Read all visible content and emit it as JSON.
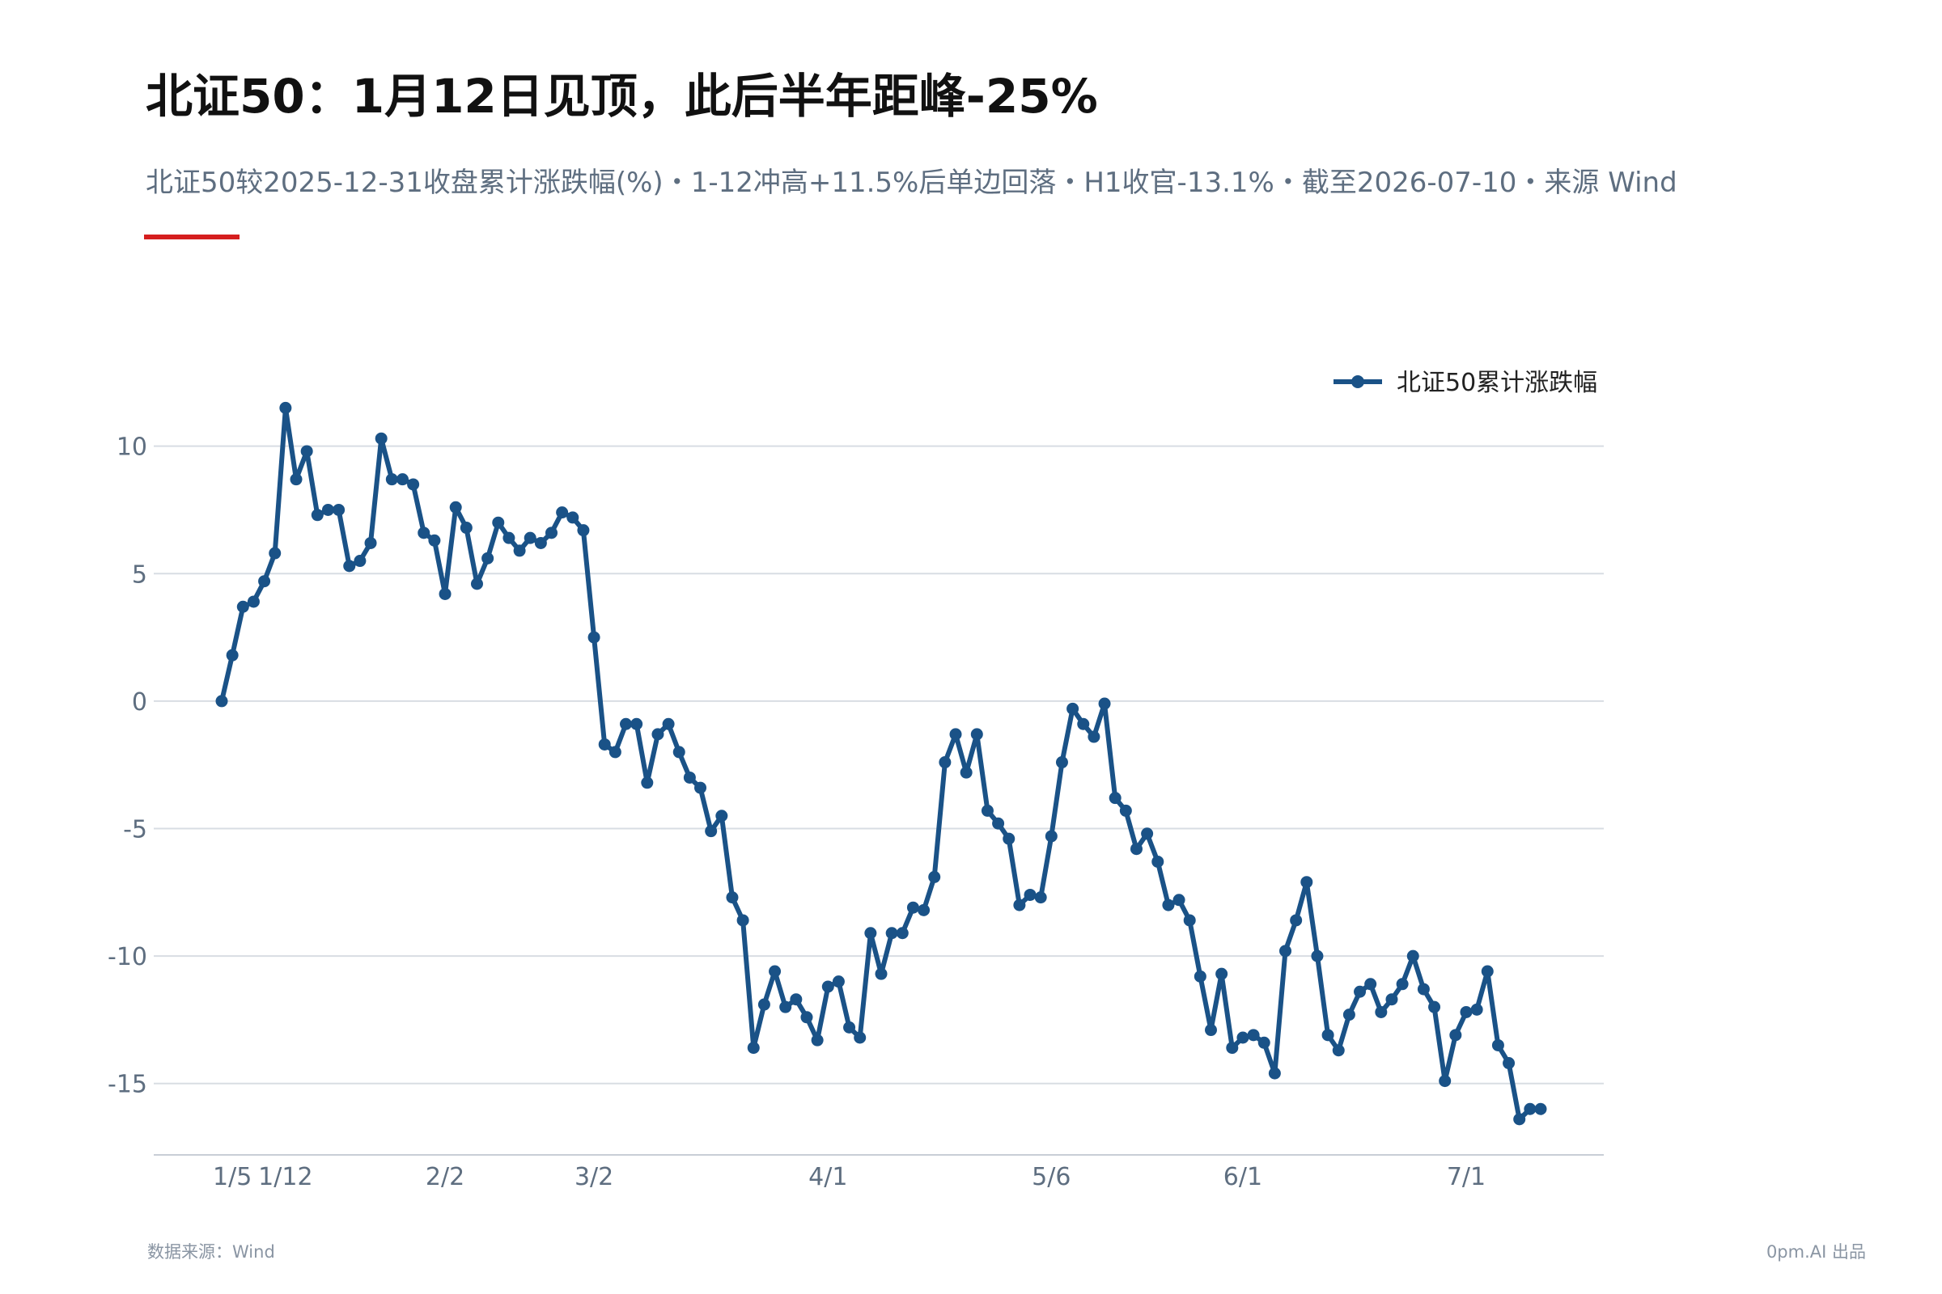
{
  "header": {
    "title": "北证50：1月12日见顶，此后半年距峰-25%",
    "subtitle": "北证50较2025-12-31收盘累计涨跌幅(%)・1-12冲高+11.5%后单边回落・H1收官-13.1%・截至2026-07-10・来源 Wind"
  },
  "footer": {
    "source": "数据来源：Wind",
    "credit": "0pm.AI 出品"
  },
  "colors": {
    "series": "#1a5287",
    "accent": "#d51e1e",
    "grid": "#d8dde3",
    "axis_text": "#5e6e80"
  },
  "chart_data": {
    "type": "line",
    "title": "北证50：1月12日见顶，此后半年距峰-25%",
    "xlabel": "",
    "ylabel": "",
    "x_tick_labels": [
      "1/5",
      "1/12",
      "2/2",
      "3/2",
      "4/1",
      "5/6",
      "6/1",
      "7/1"
    ],
    "x_tick_indices": [
      1,
      6,
      21,
      35,
      57,
      78,
      96,
      117
    ],
    "y_ticks": [
      10,
      5,
      0,
      -5,
      -10,
      -15
    ],
    "ylim": [
      -17.8,
      12.4
    ],
    "grid": true,
    "legend_position": "top-right",
    "series": [
      {
        "name": "北证50累计涨跌幅",
        "values": [
          0,
          1.8,
          3.7,
          3.9,
          4.7,
          5.8,
          11.5,
          8.7,
          9.8,
          7.3,
          7.5,
          7.5,
          5.3,
          5.5,
          6.2,
          10.3,
          8.7,
          8.7,
          8.5,
          6.6,
          6.3,
          4.2,
          7.6,
          6.8,
          4.6,
          5.6,
          7.0,
          6.4,
          5.9,
          6.4,
          6.2,
          6.6,
          7.4,
          7.2,
          6.7,
          2.5,
          -1.7,
          -2.0,
          -0.9,
          -0.9,
          -3.2,
          -1.3,
          -0.9,
          -2.0,
          -3.0,
          -3.4,
          -5.1,
          -4.5,
          -7.7,
          -8.6,
          -13.6,
          -11.9,
          -10.6,
          -12.0,
          -11.7,
          -12.4,
          -13.3,
          -11.2,
          -11.0,
          -12.8,
          -13.2,
          -9.1,
          -10.7,
          -9.1,
          -9.1,
          -8.1,
          -8.2,
          -6.9,
          -2.4,
          -1.3,
          -2.8,
          -1.3,
          -4.3,
          -4.8,
          -5.4,
          -8.0,
          -7.6,
          -7.7,
          -5.3,
          -2.4,
          -0.3,
          -0.9,
          -1.4,
          -0.1,
          -3.8,
          -4.3,
          -5.8,
          -5.2,
          -6.3,
          -8.0,
          -7.8,
          -8.6,
          -10.8,
          -12.9,
          -10.7,
          -13.6,
          -13.2,
          -13.1,
          -13.4,
          -14.6,
          -9.8,
          -8.6,
          -7.1,
          -10.0,
          -13.1,
          -13.7,
          -12.3,
          -11.4,
          -11.1,
          -12.2,
          -11.7,
          -11.1,
          -10.0,
          -11.3,
          -12.0,
          -14.9,
          -13.1,
          -12.2,
          -12.1,
          -10.6,
          -13.5,
          -14.2,
          -16.4,
          -16.0,
          -16.0
        ]
      }
    ]
  }
}
